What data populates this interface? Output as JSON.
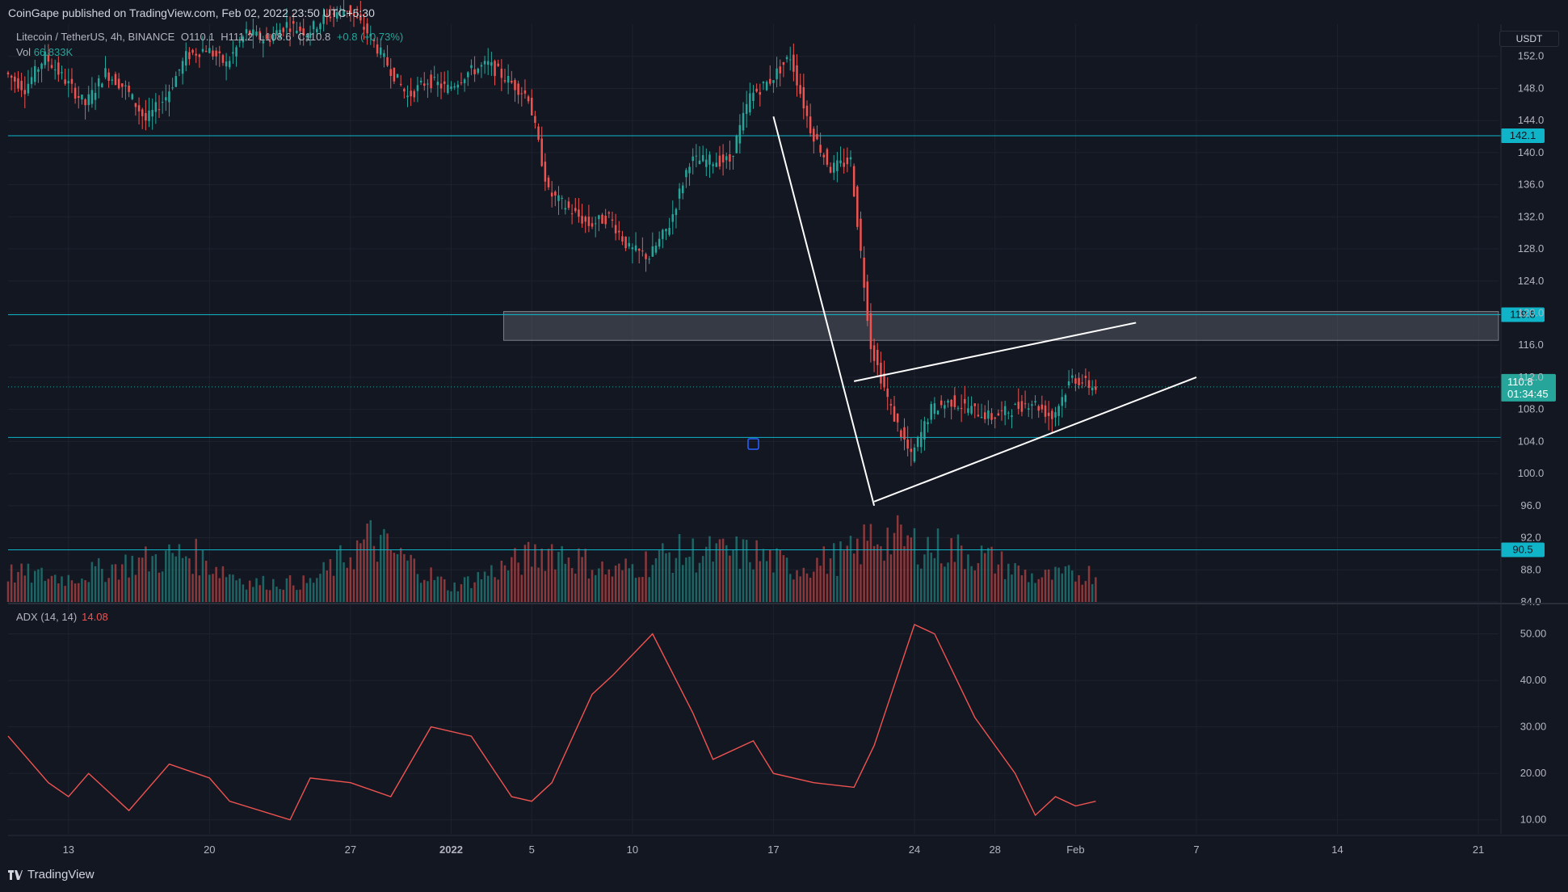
{
  "header": {
    "publisher_text": "CoinGape published on TradingView.com, Feb 02, 2022 23:50 UTC+5:30"
  },
  "legend": {
    "symbol": "Litecoin / TetherUS, 4h, BINANCE",
    "open": "O110.1",
    "high": "H111.2",
    "low": "L108.6",
    "close": "C110.8",
    "change": "+0.8 (+0.73%)",
    "volume_label": "Vol",
    "volume_value": "66.833K"
  },
  "adx": {
    "label": "ADX (14, 14)",
    "value": "14.08"
  },
  "currency": "USDT",
  "brand": "TradingView",
  "colors": {
    "up": "#26a69a",
    "down": "#ef5350",
    "level": "#0fb4c8",
    "adx": "#ef5350",
    "trendline": "#ffffff",
    "zone": "#787b86"
  },
  "chart_data": [
    {
      "type": "candlestick",
      "title": "Litecoin / TetherUS, 4h, BINANCE",
      "ylabel": "USDT",
      "ylim": [
        84,
        156
      ],
      "y_ticks": [
        "152.0",
        "148.0",
        "144.0",
        "140.0",
        "136.0",
        "132.0",
        "128.0",
        "124.0",
        "120.0",
        "116.0",
        "112.0",
        "108.0",
        "104.0",
        "100.0",
        "96.0",
        "92.0",
        "88.0",
        "84.0"
      ],
      "x_ticks": [
        "13",
        "20",
        "27",
        "2022",
        "5",
        "10",
        "17",
        "24",
        "28",
        "Feb",
        "7",
        "14",
        "21"
      ],
      "x_tick_dates": [
        "2021-12-13",
        "2021-12-20",
        "2021-12-27",
        "2022-01-01",
        "2022-01-05",
        "2022-01-10",
        "2022-01-17",
        "2022-01-24",
        "2022-01-28",
        "2022-02-01",
        "2022-02-07",
        "2022-02-14",
        "2022-02-21"
      ],
      "x_range": [
        "2021-12-10",
        "2022-02-22"
      ],
      "price_path": [
        [
          "2021-12-10",
          150
        ],
        [
          "2021-12-11",
          148
        ],
        [
          "2021-12-12",
          152
        ],
        [
          "2021-12-13",
          149
        ],
        [
          "2021-12-14",
          146
        ],
        [
          "2021-12-15",
          150
        ],
        [
          "2021-12-16",
          148
        ],
        [
          "2021-12-17",
          144
        ],
        [
          "2021-12-18",
          147
        ],
        [
          "2021-12-19",
          152
        ],
        [
          "2021-12-20",
          153
        ],
        [
          "2021-12-21",
          151
        ],
        [
          "2021-12-22",
          155
        ],
        [
          "2021-12-23",
          154
        ],
        [
          "2021-12-24",
          156
        ],
        [
          "2021-12-25",
          155
        ],
        [
          "2021-12-26",
          157
        ],
        [
          "2021-12-27",
          158
        ],
        [
          "2021-12-28",
          155
        ],
        [
          "2021-12-29",
          151
        ],
        [
          "2021-12-30",
          147
        ],
        [
          "2021-12-31",
          149
        ],
        [
          "2022-01-01",
          148
        ],
        [
          "2022-01-02",
          150
        ],
        [
          "2022-01-03",
          151
        ],
        [
          "2022-01-04",
          149
        ],
        [
          "2022-01-05",
          147
        ],
        [
          "2022-01-06",
          135
        ],
        [
          "2022-01-07",
          133
        ],
        [
          "2022-01-08",
          131
        ],
        [
          "2022-01-09",
          132
        ],
        [
          "2022-01-10",
          128
        ],
        [
          "2022-01-11",
          127
        ],
        [
          "2022-01-12",
          131
        ],
        [
          "2022-01-13",
          139
        ],
        [
          "2022-01-14",
          139
        ],
        [
          "2022-01-15",
          139
        ],
        [
          "2022-01-16",
          147
        ],
        [
          "2022-01-17",
          149
        ],
        [
          "2022-01-18",
          152
        ],
        [
          "2022-01-19",
          143
        ],
        [
          "2022-01-20",
          138
        ],
        [
          "2022-01-21",
          139
        ],
        [
          "2022-01-22",
          116
        ],
        [
          "2022-01-23",
          108
        ],
        [
          "2022-01-24",
          102
        ],
        [
          "2022-01-25",
          108
        ],
        [
          "2022-01-26",
          109
        ],
        [
          "2022-01-27",
          108
        ],
        [
          "2022-01-28",
          107
        ],
        [
          "2022-01-29",
          108
        ],
        [
          "2022-01-30",
          109
        ],
        [
          "2022-01-31",
          107
        ],
        [
          "2022-02-01",
          112
        ],
        [
          "2022-02-02",
          110.8
        ]
      ],
      "horizontal_levels": [
        142.1,
        119.8,
        104.5,
        90.5
      ],
      "level_labels": [
        "142.1",
        "119.8",
        "90.5"
      ],
      "current_price": {
        "label": "110.8",
        "countdown": "01:34:45",
        "value": 110.8
      },
      "resistance_zone": {
        "from": "2022-01-02",
        "to": "2022-02-22",
        "low": 116.6,
        "high": 120.2
      },
      "trendlines": [
        {
          "name": "decline",
          "from": [
            "2022-01-17",
            144.5
          ],
          "to": [
            "2022-01-22",
            96.0
          ]
        },
        {
          "name": "wedge-upper",
          "from": [
            "2022-01-21",
            111.5
          ],
          "to": [
            "2022-02-04",
            118.8
          ]
        },
        {
          "name": "wedge-lower",
          "from": [
            "2022-01-22",
            96.5
          ],
          "to": [
            "2022-02-07",
            112.0
          ]
        }
      ],
      "volume": {
        "label": "Vol",
        "value": "66.833K",
        "bars": [
          [
            "2021-12-10",
            6
          ],
          [
            "2021-12-13",
            5
          ],
          [
            "2021-12-16",
            8
          ],
          [
            "2021-12-19",
            10
          ],
          [
            "2021-12-22",
            4
          ],
          [
            "2021-12-25",
            4
          ],
          [
            "2021-12-28",
            13
          ],
          [
            "2022-01-01",
            3
          ],
          [
            "2022-01-06",
            11
          ],
          [
            "2022-01-09",
            6
          ],
          [
            "2022-01-12",
            10
          ],
          [
            "2022-01-16",
            10
          ],
          [
            "2022-01-18",
            7
          ],
          [
            "2022-01-21",
            10
          ],
          [
            "2022-01-22",
            14
          ],
          [
            "2022-01-24",
            12
          ],
          [
            "2022-01-27",
            10
          ],
          [
            "2022-01-30",
            5
          ],
          [
            "2022-02-02",
            6
          ]
        ]
      }
    },
    {
      "type": "line",
      "title": "ADX (14, 14)",
      "series": [
        {
          "name": "ADX (14, 14)",
          "x": [
            "2021-12-10",
            "2021-12-12",
            "2021-12-13",
            "2021-12-14",
            "2021-12-16",
            "2021-12-18",
            "2021-12-20",
            "2021-12-21",
            "2021-12-24",
            "2021-12-25",
            "2021-12-27",
            "2021-12-29",
            "2021-12-31",
            "2022-01-02",
            "2022-01-04",
            "2022-01-05",
            "2022-01-06",
            "2022-01-08",
            "2022-01-09",
            "2022-01-11",
            "2022-01-13",
            "2022-01-14",
            "2022-01-16",
            "2022-01-17",
            "2022-01-19",
            "2022-01-21",
            "2022-01-22",
            "2022-01-24",
            "2022-01-25",
            "2022-01-27",
            "2022-01-29",
            "2022-01-30",
            "2022-01-31",
            "2022-02-01",
            "2022-02-02"
          ],
          "values": [
            28,
            18,
            15,
            20,
            12,
            22,
            19,
            14,
            10,
            19,
            18,
            15,
            30,
            28,
            15,
            14,
            18,
            37,
            41,
            50,
            33,
            23,
            27,
            20,
            18,
            17,
            26,
            52,
            50,
            32,
            20,
            11,
            15,
            13,
            14
          ]
        }
      ],
      "ylim": [
        7,
        56
      ],
      "y_ticks": [
        "50.00",
        "40.00",
        "30.00",
        "20.00",
        "10.00"
      ]
    }
  ]
}
